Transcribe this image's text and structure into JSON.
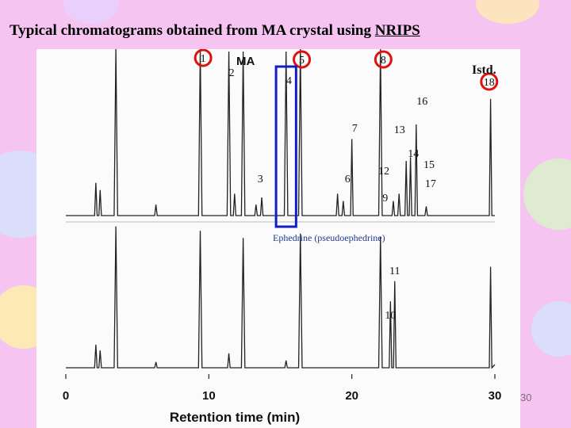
{
  "slide": {
    "title_main": "Typical chromatograms obtained from MA crystal using ",
    "title_underlined": "NRIPS",
    "page_number": "30"
  },
  "chart_data": {
    "type": "line",
    "title": "",
    "xlabel": "Retention time (min)",
    "ylabel": "",
    "xlim": [
      0,
      30
    ],
    "xticks": [
      0,
      10,
      20,
      30
    ],
    "grid": false,
    "annotations": {
      "ma": "MA",
      "istd": "Istd.",
      "ephedrine_label": "Ephedrine (pseudoephedrine)"
    },
    "peak_labels": [
      {
        "label": "1",
        "x": 9.6,
        "panel": "top",
        "circled": true
      },
      {
        "label": "2",
        "x": 11.6,
        "panel": "top",
        "circled": false
      },
      {
        "label": "3",
        "x": 13.6,
        "panel": "top",
        "circled": false
      },
      {
        "label": "4",
        "x": 15.6,
        "panel": "top",
        "circled": false
      },
      {
        "label": "5",
        "x": 16.5,
        "panel": "top",
        "circled": true
      },
      {
        "label": "6",
        "x": 19.7,
        "panel": "top",
        "circled": false
      },
      {
        "label": "7",
        "x": 20.2,
        "panel": "top",
        "circled": false
      },
      {
        "label": "8",
        "x": 22.2,
        "panel": "top",
        "circled": true
      },
      {
        "label": "9",
        "x": 23.0,
        "panel": "top",
        "circled": false
      },
      {
        "label": "12",
        "x": 22.9,
        "panel": "top",
        "circled": false
      },
      {
        "label": "13",
        "x": 24.0,
        "panel": "top",
        "circled": false
      },
      {
        "label": "14",
        "x": 24.3,
        "panel": "top",
        "circled": false
      },
      {
        "label": "15",
        "x": 25.4,
        "panel": "top",
        "circled": false
      },
      {
        "label": "16",
        "x": 24.8,
        "panel": "top",
        "circled": false
      },
      {
        "label": "17",
        "x": 25.5,
        "panel": "top",
        "circled": false
      },
      {
        "label": "18",
        "x": 29.6,
        "panel": "top",
        "circled": true
      },
      {
        "label": "10",
        "x": 22.7,
        "panel": "bottom",
        "circled": false
      },
      {
        "label": "11",
        "x": 23.0,
        "panel": "bottom",
        "circled": false
      }
    ],
    "series": [
      {
        "peaks": [
          {
            "x": 2.1,
            "h": 0.18
          },
          {
            "x": 2.4,
            "h": 0.14
          },
          {
            "x": 3.5,
            "h": 1.0
          },
          {
            "x": 6.3,
            "h": 0.06
          },
          {
            "x": 9.4,
            "h": 0.97
          },
          {
            "x": 11.4,
            "h": 0.9
          },
          {
            "x": 11.8,
            "h": 0.12
          },
          {
            "x": 12.4,
            "h": 0.9
          },
          {
            "x": 13.3,
            "h": 0.06
          },
          {
            "x": 13.7,
            "h": 0.1
          },
          {
            "x": 15.4,
            "h": 0.9
          },
          {
            "x": 16.4,
            "h": 0.94
          },
          {
            "x": 19.0,
            "h": 0.12
          },
          {
            "x": 19.4,
            "h": 0.08
          },
          {
            "x": 20.0,
            "h": 0.42
          },
          {
            "x": 22.0,
            "h": 0.92
          },
          {
            "x": 22.9,
            "h": 0.08
          },
          {
            "x": 23.3,
            "h": 0.12
          },
          {
            "x": 23.8,
            "h": 0.3
          },
          {
            "x": 24.1,
            "h": 0.32
          },
          {
            "x": 24.5,
            "h": 0.5
          },
          {
            "x": 25.2,
            "h": 0.05
          },
          {
            "x": 29.7,
            "h": 0.64
          }
        ]
      },
      {
        "peaks": [
          {
            "x": 2.1,
            "h": 0.16
          },
          {
            "x": 2.4,
            "h": 0.12
          },
          {
            "x": 3.5,
            "h": 0.98
          },
          {
            "x": 6.3,
            "h": 0.04
          },
          {
            "x": 9.4,
            "h": 0.95
          },
          {
            "x": 11.4,
            "h": 0.1
          },
          {
            "x": 12.4,
            "h": 0.9
          },
          {
            "x": 15.4,
            "h": 0.05
          },
          {
            "x": 16.4,
            "h": 0.93
          },
          {
            "x": 22.0,
            "h": 0.91
          },
          {
            "x": 22.7,
            "h": 0.46
          },
          {
            "x": 23.0,
            "h": 0.6
          },
          {
            "x": 29.7,
            "h": 0.7
          }
        ]
      }
    ]
  }
}
